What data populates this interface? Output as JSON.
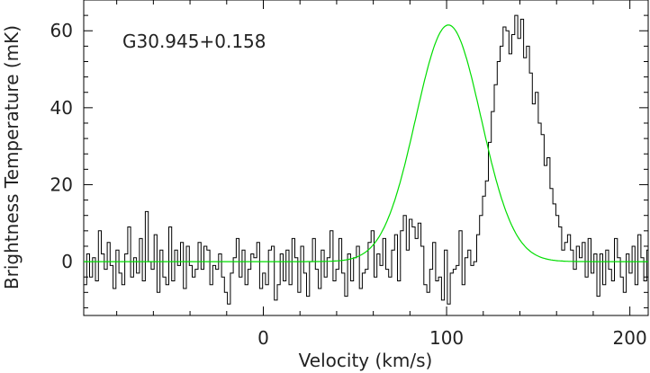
{
  "chart_data": {
    "type": "line",
    "title": "",
    "annotation": "G30.945+0.158",
    "xlabel": "Velocity (km/s)",
    "ylabel": "Brightness Temperature (mK)",
    "xlim": [
      -98,
      210
    ],
    "ylim": [
      -14,
      68
    ],
    "x_ticks": [
      0,
      100,
      200
    ],
    "y_ticks": [
      0,
      20,
      40,
      60
    ],
    "grid": false,
    "legend": "none",
    "colors": {
      "spectrum": "#000000",
      "fit": "#00dd00"
    },
    "series": [
      {
        "style": "step",
        "color": "#000000",
        "bin_start": -98,
        "bin_width": 1.6,
        "values": [
          -6,
          2,
          -4,
          1,
          -5,
          8,
          2,
          -2,
          5,
          -1,
          -7,
          3,
          -3,
          -6,
          2,
          9,
          -4,
          1,
          -3,
          6,
          -5,
          13,
          0,
          -2,
          7,
          -8,
          3,
          -4,
          -6,
          9,
          -5,
          3,
          -1,
          5,
          -7,
          4,
          -1,
          -4,
          -2,
          5,
          -2,
          4,
          3,
          -6,
          -1,
          -2,
          2,
          -4,
          -8,
          -11,
          -3,
          1,
          6,
          -4,
          3,
          -6,
          -2,
          2,
          1,
          5,
          -7,
          -3,
          -6,
          3,
          4,
          -10,
          -6,
          2,
          -5,
          3,
          -6,
          6,
          1,
          -8,
          4,
          -3,
          -9,
          0,
          6,
          -2,
          -7,
          3,
          -4,
          1,
          8,
          -5,
          -2,
          6,
          -3,
          -9,
          2,
          -5,
          1,
          4,
          -7,
          -3,
          -2,
          5,
          8,
          -4,
          2,
          -1,
          6,
          -2,
          -4,
          3,
          7,
          -5,
          8,
          12,
          3,
          11,
          9,
          6,
          10,
          4,
          -6,
          -8,
          -2,
          5,
          -5,
          -4,
          -10,
          3,
          -11,
          -3,
          -2,
          -1,
          8,
          -6,
          1,
          3,
          -1,
          0,
          7,
          12,
          17,
          21,
          31,
          39,
          46,
          52,
          56,
          61,
          60,
          54,
          59,
          64,
          58,
          63,
          53,
          56,
          49,
          41,
          44,
          36,
          33,
          25,
          27,
          19,
          15,
          12,
          9,
          3,
          5,
          7,
          3,
          -2,
          4,
          1,
          5,
          -4,
          6,
          -3,
          2,
          -9,
          2,
          -6,
          3,
          -2,
          -5,
          6,
          1,
          -4,
          -8,
          2,
          -3,
          4,
          -6,
          7,
          1,
          -5,
          3,
          -2,
          4,
          8,
          -6,
          -1,
          6,
          -3,
          -9,
          4,
          1
        ],
        "name": ""
      },
      {
        "style": "gaussian-fit",
        "color": "#00dd00",
        "amplitude": 61.5,
        "center": 101,
        "fwhm": 42,
        "name": ""
      }
    ]
  }
}
